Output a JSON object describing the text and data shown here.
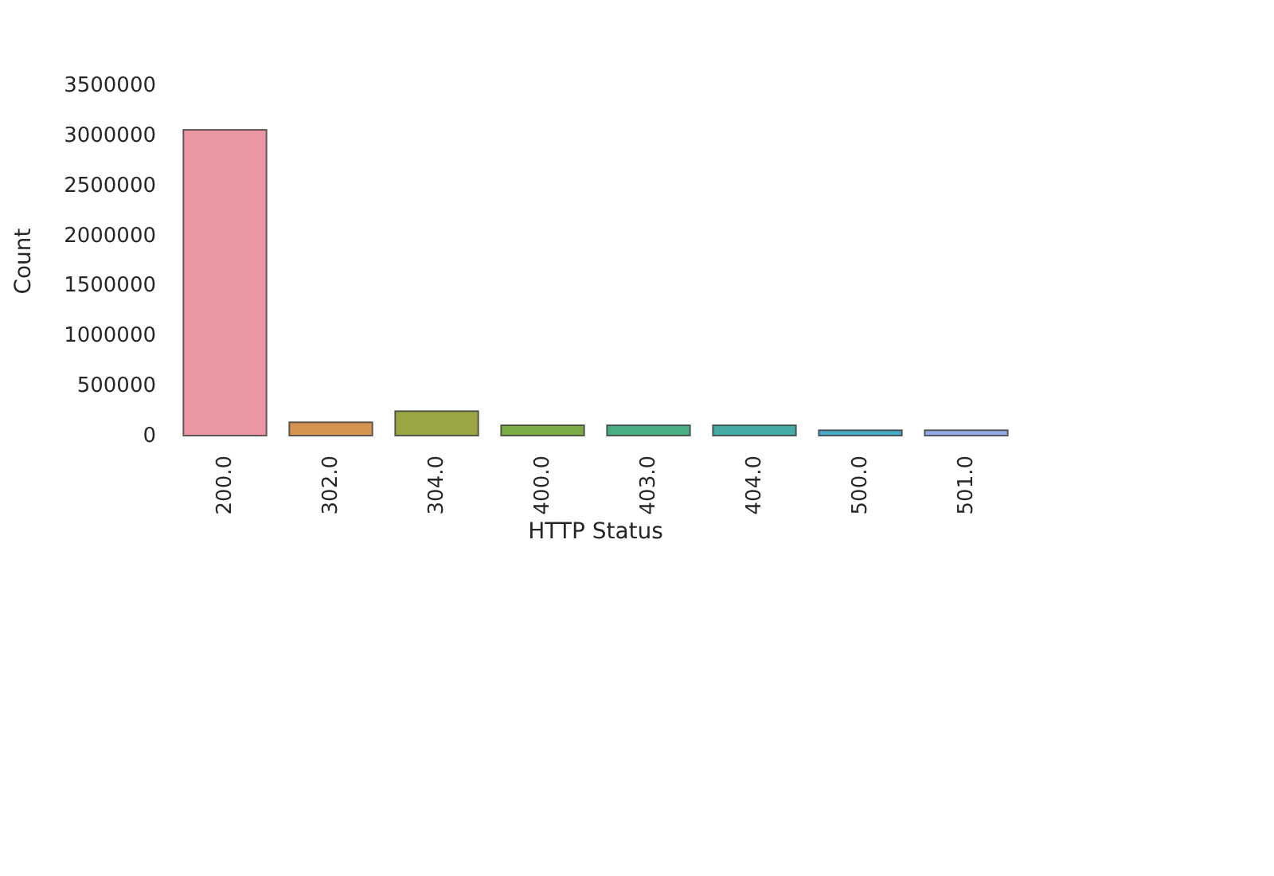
{
  "chart_data": {
    "type": "bar",
    "categories": [
      "200.0",
      "302.0",
      "304.0",
      "400.0",
      "403.0",
      "404.0",
      "500.0",
      "501.0"
    ],
    "values": [
      3070000,
      150000,
      260000,
      120000,
      120000,
      120000,
      70000,
      70000
    ],
    "colors": [
      "#ea96a3",
      "#d5944f",
      "#9ba544",
      "#7aab45",
      "#4aae82",
      "#46aaa4",
      "#48aac4",
      "#94a9e6"
    ],
    "xlabel": "HTTP Status",
    "ylabel": "Count",
    "ylim": [
      0,
      3500000
    ],
    "yticks": [
      0,
      500000,
      1000000,
      1500000,
      2000000,
      2500000,
      3000000,
      3500000
    ]
  }
}
